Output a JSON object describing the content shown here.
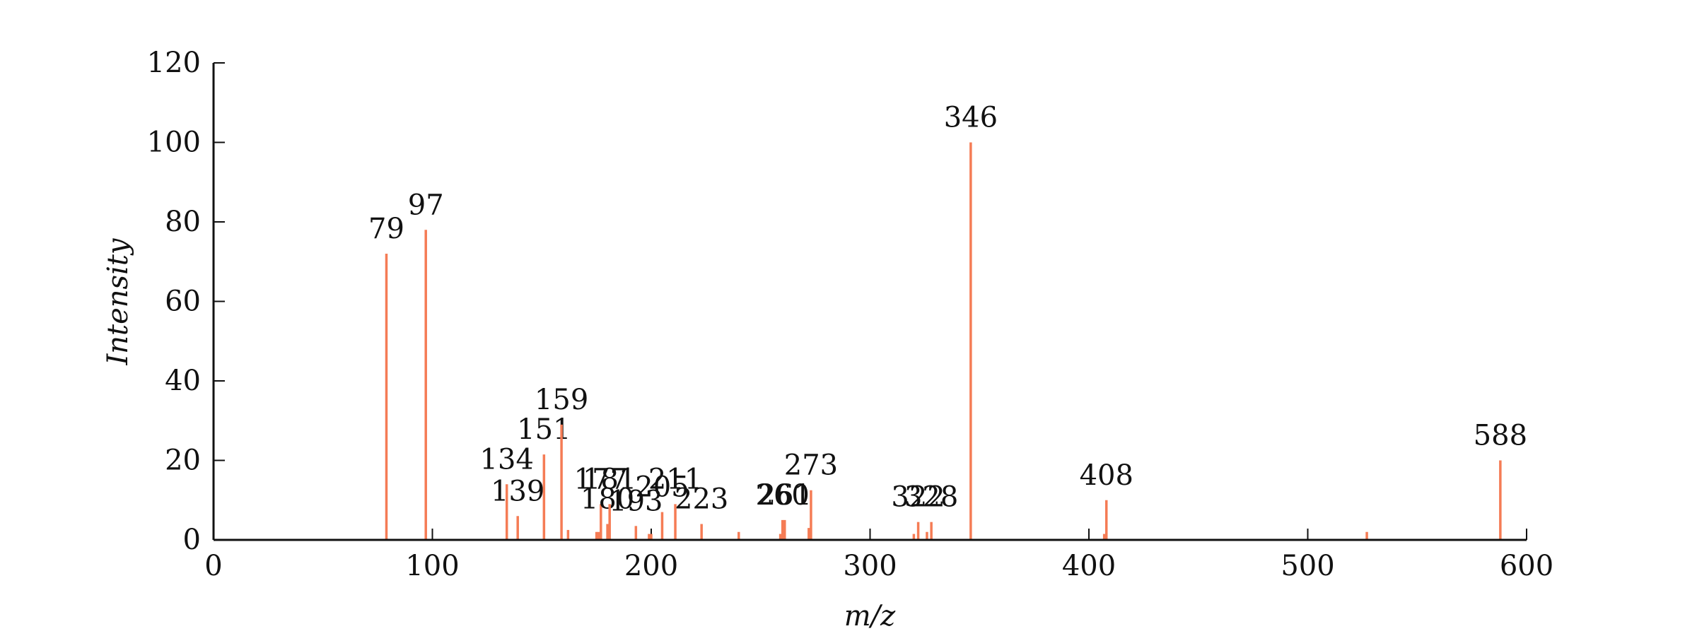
{
  "chart_data": {
    "type": "stem",
    "xlabel": "m/z",
    "ylabel": "Intensity",
    "color": "#f57c55",
    "x": [
      79,
      97,
      134,
      139,
      151,
      159,
      162,
      175,
      176,
      177,
      180,
      181,
      193,
      199,
      200,
      205,
      211,
      223,
      240,
      259,
      260,
      261,
      272,
      273,
      320,
      322,
      326,
      328,
      346,
      407,
      408,
      527,
      588
    ],
    "values": [
      72,
      78,
      14,
      6,
      21.5,
      29,
      2.5,
      2,
      2,
      9,
      4,
      9,
      3.5,
      1.5,
      1.5,
      7,
      9,
      4,
      2,
      1.5,
      5,
      5,
      3,
      12.5,
      1.5,
      4.5,
      2,
      4.5,
      100,
      1.5,
      10,
      2,
      20
    ],
    "peak_labels": [
      "79",
      "97",
      "134",
      "139",
      "151",
      "159",
      null,
      null,
      null,
      "177",
      "180",
      "181",
      "193",
      null,
      null,
      "205",
      "211",
      "223",
      null,
      null,
      "260",
      "261",
      null,
      "273",
      null,
      "322",
      null,
      "328",
      "346",
      null,
      "408",
      null,
      "588"
    ],
    "xlim": [
      0,
      600
    ],
    "xticks": [
      0,
      100,
      200,
      300,
      400,
      500,
      600
    ],
    "ylim": [
      0,
      120
    ],
    "yticks": [
      0,
      20,
      40,
      60,
      80,
      100,
      120
    ]
  }
}
